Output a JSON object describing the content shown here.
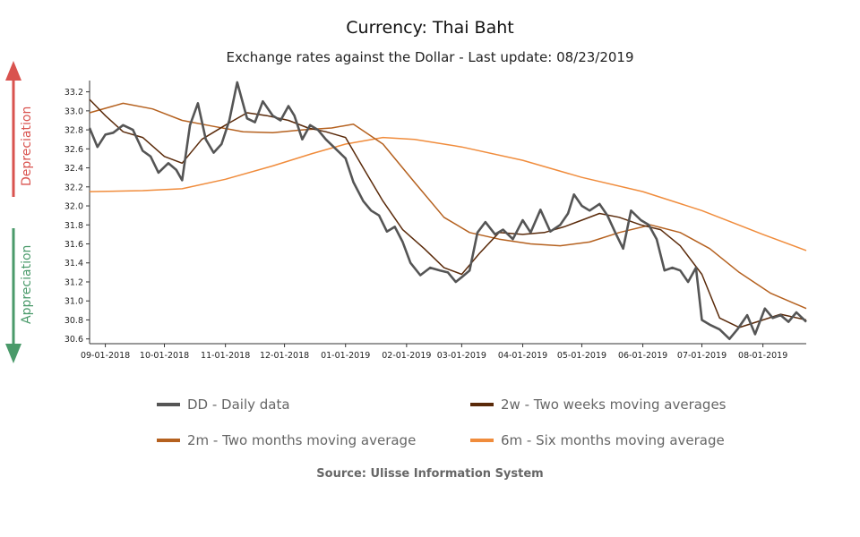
{
  "title": "Currency: Thai Baht",
  "subtitle": "Exchange rates against the Dollar - Last update: 08/23/2019",
  "side_labels": {
    "depreciation": "Depreciation",
    "appreciation": "Appreciation",
    "depreciation_color": "#d9534f",
    "appreciation_color": "#4a9a6a"
  },
  "source": "Source: Ulisse Information System",
  "legend": [
    {
      "code": "DD",
      "label": "DD - Daily data",
      "color": "#555555"
    },
    {
      "code": "2w",
      "label": "2w - Two weeks moving averages",
      "color": "#5a2a0a"
    },
    {
      "code": "2m",
      "label": "2m - Two months moving average",
      "color": "#b5611f"
    },
    {
      "code": "6m",
      "label": "6m - Six months moving average",
      "color": "#f08c3c"
    }
  ],
  "chart_data": {
    "type": "line",
    "x_ticks": [
      "09-01-2018",
      "10-01-2018",
      "11-01-2018",
      "12-01-2018",
      "01-01-2019",
      "02-01-2019",
      "03-01-2019",
      "04-01-2019",
      "05-01-2019",
      "06-01-2019",
      "07-01-2019",
      "08-01-2019"
    ],
    "y_ticks": [
      30.6,
      30.8,
      31.0,
      31.2,
      31.4,
      31.6,
      31.8,
      32.0,
      32.2,
      32.4,
      32.6,
      32.8,
      33.0,
      33.2
    ],
    "ylim": [
      30.55,
      33.3
    ],
    "x_range": [
      "2018-08-24",
      "2019-08-23"
    ],
    "grid": false,
    "series": [
      {
        "name": "DD - Daily data",
        "color": "#555555",
        "width": 2.6,
        "x": [
          "2018-08-24",
          "2018-08-28",
          "2018-09-01",
          "2018-09-05",
          "2018-09-10",
          "2018-09-15",
          "2018-09-20",
          "2018-09-24",
          "2018-09-28",
          "2018-10-03",
          "2018-10-07",
          "2018-10-10",
          "2018-10-14",
          "2018-10-18",
          "2018-10-22",
          "2018-10-26",
          "2018-10-30",
          "2018-11-03",
          "2018-11-07",
          "2018-11-12",
          "2018-11-16",
          "2018-11-20",
          "2018-11-25",
          "2018-11-29",
          "2018-12-03",
          "2018-12-06",
          "2018-12-10",
          "2018-12-14",
          "2018-12-18",
          "2018-12-22",
          "2018-12-27",
          "2019-01-01",
          "2019-01-05",
          "2019-01-10",
          "2019-01-14",
          "2019-01-18",
          "2019-01-22",
          "2019-01-26",
          "2019-01-30",
          "2019-02-03",
          "2019-02-08",
          "2019-02-13",
          "2019-02-18",
          "2019-02-22",
          "2019-02-26",
          "2019-03-01",
          "2019-03-05",
          "2019-03-09",
          "2019-03-13",
          "2019-03-18",
          "2019-03-22",
          "2019-03-27",
          "2019-04-01",
          "2019-04-05",
          "2019-04-10",
          "2019-04-15",
          "2019-04-20",
          "2019-04-24",
          "2019-04-27",
          "2019-05-01",
          "2019-05-05",
          "2019-05-10",
          "2019-05-14",
          "2019-05-18",
          "2019-05-22",
          "2019-05-26",
          "2019-05-31",
          "2019-06-04",
          "2019-06-08",
          "2019-06-12",
          "2019-06-16",
          "2019-06-20",
          "2019-06-24",
          "2019-06-28",
          "2019-07-01",
          "2019-07-05",
          "2019-07-10",
          "2019-07-15",
          "2019-07-19",
          "2019-07-24",
          "2019-07-28",
          "2019-08-02",
          "2019-08-06",
          "2019-08-10",
          "2019-08-14",
          "2019-08-18",
          "2019-08-23"
        ],
        "y": [
          32.82,
          32.62,
          32.75,
          32.77,
          32.85,
          32.8,
          32.58,
          32.52,
          32.35,
          32.45,
          32.38,
          32.27,
          32.85,
          33.08,
          32.7,
          32.56,
          32.65,
          32.9,
          33.3,
          32.92,
          32.88,
          33.1,
          32.95,
          32.9,
          33.05,
          32.95,
          32.7,
          32.85,
          32.8,
          32.7,
          32.6,
          32.5,
          32.25,
          32.05,
          31.95,
          31.9,
          31.73,
          31.78,
          31.62,
          31.4,
          31.27,
          31.35,
          31.32,
          31.3,
          31.2,
          31.25,
          31.32,
          31.72,
          31.83,
          31.7,
          31.75,
          31.65,
          31.85,
          31.72,
          31.96,
          31.73,
          31.8,
          31.92,
          32.12,
          32.0,
          31.95,
          32.02,
          31.9,
          31.72,
          31.55,
          31.95,
          31.85,
          31.8,
          31.65,
          31.32,
          31.35,
          31.32,
          31.2,
          31.35,
          30.8,
          30.75,
          30.7,
          30.6,
          30.7,
          30.85,
          30.65,
          30.92,
          30.82,
          30.85,
          30.78,
          30.88,
          30.78
        ]
      },
      {
        "name": "2w - Two weeks moving averages",
        "color": "#5a2a0a",
        "width": 1.5,
        "x": [
          "2018-08-24",
          "2018-09-01",
          "2018-09-10",
          "2018-09-20",
          "2018-10-01",
          "2018-10-10",
          "2018-10-20",
          "2018-11-01",
          "2018-11-12",
          "2018-11-22",
          "2018-12-03",
          "2018-12-13",
          "2018-12-22",
          "2019-01-01",
          "2019-01-10",
          "2019-01-20",
          "2019-01-30",
          "2019-02-10",
          "2019-02-20",
          "2019-03-01",
          "2019-03-10",
          "2019-03-20",
          "2019-04-01",
          "2019-04-12",
          "2019-04-22",
          "2019-05-01",
          "2019-05-10",
          "2019-05-20",
          "2019-05-31",
          "2019-06-10",
          "2019-06-20",
          "2019-07-01",
          "2019-07-10",
          "2019-07-20",
          "2019-08-01",
          "2019-08-10",
          "2019-08-23"
        ],
        "y": [
          33.12,
          32.95,
          32.78,
          32.72,
          32.52,
          32.45,
          32.7,
          32.85,
          32.98,
          32.95,
          32.9,
          32.82,
          32.78,
          32.72,
          32.4,
          32.05,
          31.75,
          31.55,
          31.35,
          31.28,
          31.5,
          31.72,
          31.7,
          31.72,
          31.78,
          31.85,
          31.92,
          31.88,
          31.8,
          31.75,
          31.58,
          31.28,
          30.82,
          30.72,
          30.8,
          30.86,
          30.8
        ]
      },
      {
        "name": "2m - Two months moving average",
        "color": "#b5611f",
        "width": 1.5,
        "x": [
          "2018-08-24",
          "2018-09-10",
          "2018-09-25",
          "2018-10-10",
          "2018-10-25",
          "2018-11-10",
          "2018-11-25",
          "2018-12-10",
          "2018-12-25",
          "2019-01-05",
          "2019-01-20",
          "2019-02-05",
          "2019-02-20",
          "2019-03-05",
          "2019-03-20",
          "2019-04-05",
          "2019-04-20",
          "2019-05-05",
          "2019-05-20",
          "2019-06-05",
          "2019-06-20",
          "2019-07-05",
          "2019-07-20",
          "2019-08-05",
          "2019-08-23"
        ],
        "y": [
          32.98,
          33.08,
          33.02,
          32.9,
          32.84,
          32.78,
          32.77,
          32.8,
          32.82,
          32.86,
          32.65,
          32.25,
          31.88,
          31.72,
          31.65,
          31.6,
          31.58,
          31.62,
          31.72,
          31.8,
          31.72,
          31.55,
          31.3,
          31.08,
          30.92
        ]
      },
      {
        "name": "6m - Six months moving average",
        "color": "#f08c3c",
        "width": 1.5,
        "x": [
          "2018-08-24",
          "2018-09-20",
          "2018-10-10",
          "2018-11-01",
          "2018-11-25",
          "2018-12-15",
          "2019-01-01",
          "2019-01-20",
          "2019-02-05",
          "2019-03-01",
          "2019-04-01",
          "2019-05-01",
          "2019-06-01",
          "2019-07-01",
          "2019-08-01",
          "2019-08-23"
        ],
        "y": [
          32.15,
          32.16,
          32.18,
          32.28,
          32.42,
          32.55,
          32.65,
          32.72,
          32.7,
          32.62,
          32.48,
          32.3,
          32.15,
          31.95,
          31.7,
          31.53
        ]
      }
    ]
  }
}
